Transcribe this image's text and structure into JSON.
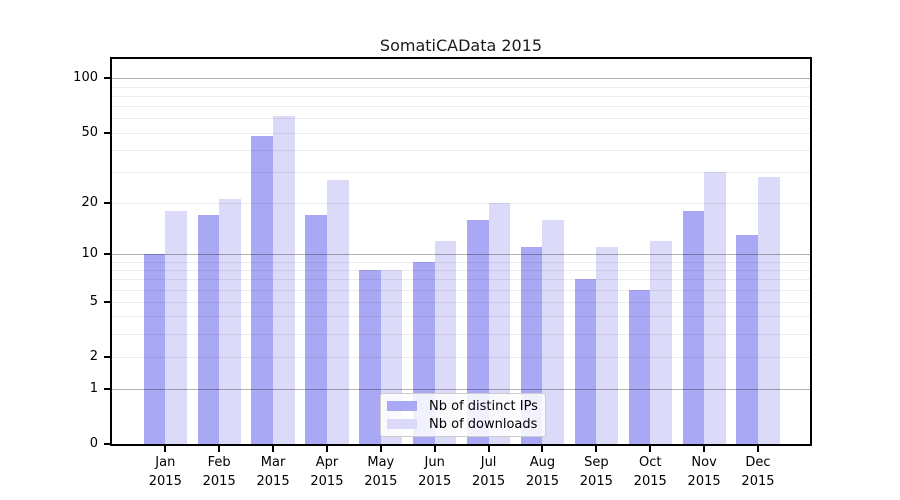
{
  "chart_data": {
    "type": "bar",
    "title": "SomatiCAData 2015",
    "categories": [
      "Jan 2015",
      "Feb 2015",
      "Mar 2015",
      "Apr 2015",
      "May 2015",
      "Jun 2015",
      "Jul 2015",
      "Aug 2015",
      "Sep 2015",
      "Oct 2015",
      "Nov 2015",
      "Dec 2015"
    ],
    "series": [
      {
        "name": "Nb of distinct IPs",
        "color": "#a9a8f4",
        "values": [
          10,
          17,
          48,
          17,
          8,
          9,
          16,
          11,
          7,
          6,
          18,
          13
        ]
      },
      {
        "name": "Nb of downloads",
        "color": "#dbdaf8",
        "values": [
          18,
          21,
          62,
          27,
          8,
          12,
          20,
          16,
          11,
          12,
          30,
          28
        ]
      }
    ],
    "xlabel": "",
    "ylabel": "",
    "yscale": "log1p",
    "ylim": [
      0,
      127
    ],
    "yticks": [
      0,
      1,
      2,
      5,
      10,
      20,
      50,
      100
    ],
    "grid_major": [
      1,
      10,
      100
    ],
    "grid_minor": [
      2,
      3,
      4,
      5,
      6,
      7,
      8,
      9,
      20,
      30,
      40,
      50,
      60,
      70,
      80,
      90
    ],
    "grid": "on",
    "legend_position": "lower-center"
  },
  "colors": {
    "axis": "#000000",
    "major_grid": "#b2b2b2",
    "minor_grid": "#ebebeb",
    "background": "#ffffff"
  }
}
